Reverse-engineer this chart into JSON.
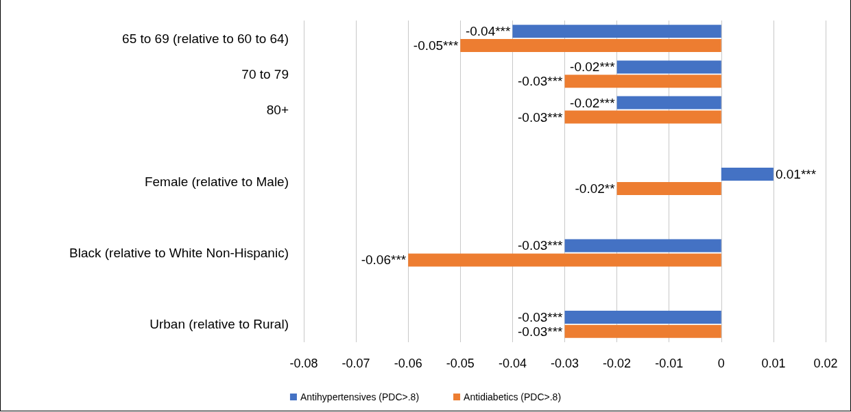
{
  "chart_data": {
    "type": "bar",
    "orientation": "horizontal",
    "categories": [
      "65 to 69 (relative to 60 to 64)",
      "70 to 79",
      "80+",
      null,
      "Female (relative to Male)",
      null,
      "Black (relative to White Non-Hispanic)",
      null,
      "Urban (relative to Rural)"
    ],
    "series": [
      {
        "name": "Antihypertensives (PDC>.8)",
        "color": "#4472c4",
        "values": [
          -0.04,
          -0.02,
          -0.02,
          null,
          0.01,
          null,
          -0.03,
          null,
          -0.03
        ],
        "value_labels": [
          "-0.04***",
          "-0.02***",
          "-0.02***",
          null,
          "0.01***",
          null,
          "-0.03***",
          null,
          "-0.03***"
        ]
      },
      {
        "name": "Antidiabetics (PDC>.8)",
        "color": "#ed7d31",
        "values": [
          -0.05,
          -0.03,
          -0.03,
          null,
          -0.02,
          null,
          -0.06,
          null,
          -0.03
        ],
        "value_labels": [
          "-0.05***",
          "-0.03***",
          "-0.03***",
          null,
          "-0.02**",
          null,
          "-0.06***",
          null,
          "-0.03***"
        ]
      }
    ],
    "xlim": [
      -0.08,
      0.02
    ],
    "xticks": [
      -0.08,
      -0.07,
      -0.06,
      -0.05,
      -0.04,
      -0.03,
      -0.02,
      -0.01,
      0,
      0.01,
      0.02
    ],
    "grid": "x",
    "legend": "bottom"
  }
}
